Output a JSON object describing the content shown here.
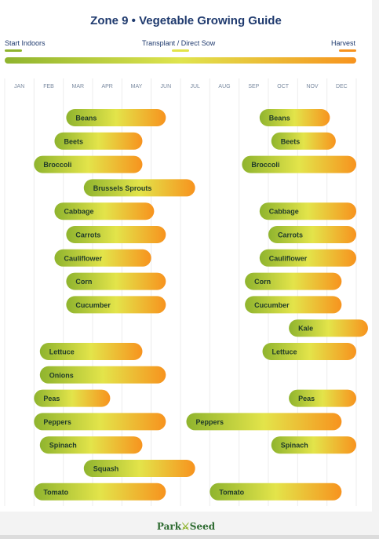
{
  "header": {
    "title": "Zone 9  •  Vegetable Growing Guide",
    "legend": [
      {
        "label": "Start Indoors",
        "color": "#8fb42e"
      },
      {
        "label": "Transplant / Direct Sow",
        "color": "#e3e44a"
      },
      {
        "label": "Harvest",
        "color": "#f7931e"
      }
    ]
  },
  "footer": {
    "logo_left": "Park",
    "logo_mark": "⚔",
    "logo_right": "Seed"
  },
  "chart_data": {
    "type": "bar",
    "months": [
      "JAN",
      "FEB",
      "MAR",
      "APR",
      "MAY",
      "JUN",
      "JUL",
      "AUG",
      "SEP",
      "OCT",
      "NOV",
      "DEC"
    ],
    "gradient_colors": [
      "#8fb42e",
      "#e3e44a",
      "#f7931e"
    ],
    "crops": [
      {
        "name": "Beans",
        "windows": [
          [
            2.1,
            5.5
          ],
          [
            8.7,
            11.1
          ]
        ]
      },
      {
        "name": "Beets",
        "windows": [
          [
            1.7,
            4.7
          ],
          [
            9.1,
            11.3
          ]
        ]
      },
      {
        "name": "Broccoli",
        "windows": [
          [
            1.0,
            4.7
          ],
          [
            8.1,
            12.0
          ]
        ]
      },
      {
        "name": "Brussels Sprouts",
        "windows": [
          [
            2.7,
            6.5
          ]
        ]
      },
      {
        "name": "Cabbage",
        "windows": [
          [
            1.7,
            5.1
          ],
          [
            8.7,
            12.0
          ]
        ]
      },
      {
        "name": "Carrots",
        "windows": [
          [
            2.1,
            5.5
          ],
          [
            9.0,
            12.0
          ]
        ]
      },
      {
        "name": "Cauliflower",
        "windows": [
          [
            1.7,
            5.0
          ],
          [
            8.7,
            12.0
          ]
        ]
      },
      {
        "name": "Corn",
        "windows": [
          [
            2.1,
            5.5
          ],
          [
            8.2,
            11.5
          ]
        ]
      },
      {
        "name": "Cucumber",
        "windows": [
          [
            2.1,
            5.5
          ],
          [
            8.2,
            11.5
          ]
        ]
      },
      {
        "name": "Kale",
        "windows": [
          [
            9.7,
            12.4
          ]
        ]
      },
      {
        "name": "Lettuce",
        "windows": [
          [
            1.2,
            4.7
          ],
          [
            8.8,
            12.0
          ]
        ]
      },
      {
        "name": "Onions",
        "windows": [
          [
            1.2,
            5.5
          ]
        ]
      },
      {
        "name": "Peas",
        "windows": [
          [
            1.0,
            3.6
          ],
          [
            9.7,
            12.0
          ]
        ]
      },
      {
        "name": "Peppers",
        "windows": [
          [
            1.0,
            5.5
          ],
          [
            6.2,
            11.5
          ]
        ]
      },
      {
        "name": "Spinach",
        "windows": [
          [
            1.2,
            4.7
          ],
          [
            9.1,
            12.0
          ]
        ]
      },
      {
        "name": "Squash",
        "windows": [
          [
            2.7,
            6.5
          ]
        ]
      },
      {
        "name": "Tomato",
        "windows": [
          [
            1.0,
            5.5
          ],
          [
            7.0,
            11.5
          ]
        ]
      }
    ]
  }
}
